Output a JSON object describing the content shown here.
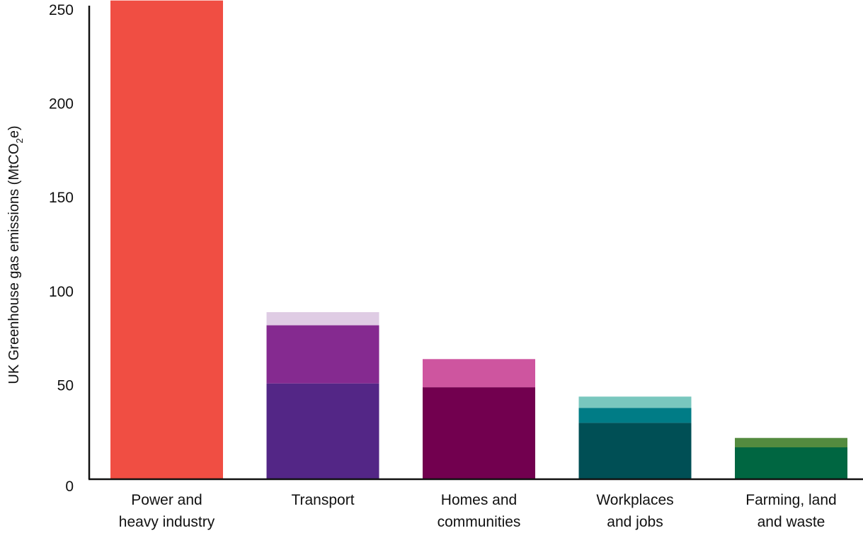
{
  "chart_data": {
    "type": "bar",
    "stacked": true,
    "title": "",
    "ylabel": "UK Greenhouse gas emissions (MtCO2e)",
    "ylabel_parts": {
      "before": "UK Greenhouse gas emissions (MtCO",
      "sub": "2",
      "after": "e)"
    },
    "ylim": [
      0,
      250
    ],
    "yticks": [
      0,
      50,
      100,
      150,
      200,
      250
    ],
    "grid": false,
    "legend": "none",
    "categories": [
      {
        "lines": [
          "Power and",
          "heavy industry"
        ]
      },
      {
        "lines": [
          "Transport"
        ]
      },
      {
        "lines": [
          "Homes and",
          "communities"
        ]
      },
      {
        "lines": [
          "Workplaces",
          "and jobs"
        ]
      },
      {
        "lines": [
          "Farming, land",
          "and waste"
        ]
      }
    ],
    "stacks": [
      [
        {
          "value": 255,
          "color": "#f04e43"
        }
      ],
      [
        {
          "value": 51,
          "color": "#532686"
        },
        {
          "value": 31,
          "color": "#852a90"
        },
        {
          "value": 7,
          "color": "#dfcce4"
        }
      ],
      [
        {
          "value": 49,
          "color": "#72004f"
        },
        {
          "value": 15,
          "color": "#ce559f"
        }
      ],
      [
        {
          "value": 30,
          "color": "#004f55"
        },
        {
          "value": 8,
          "color": "#007c86"
        },
        {
          "value": 6,
          "color": "#79c7be"
        }
      ],
      [
        {
          "value": 17,
          "color": "#006641"
        },
        {
          "value": 5,
          "color": "#548b3f"
        }
      ]
    ]
  }
}
